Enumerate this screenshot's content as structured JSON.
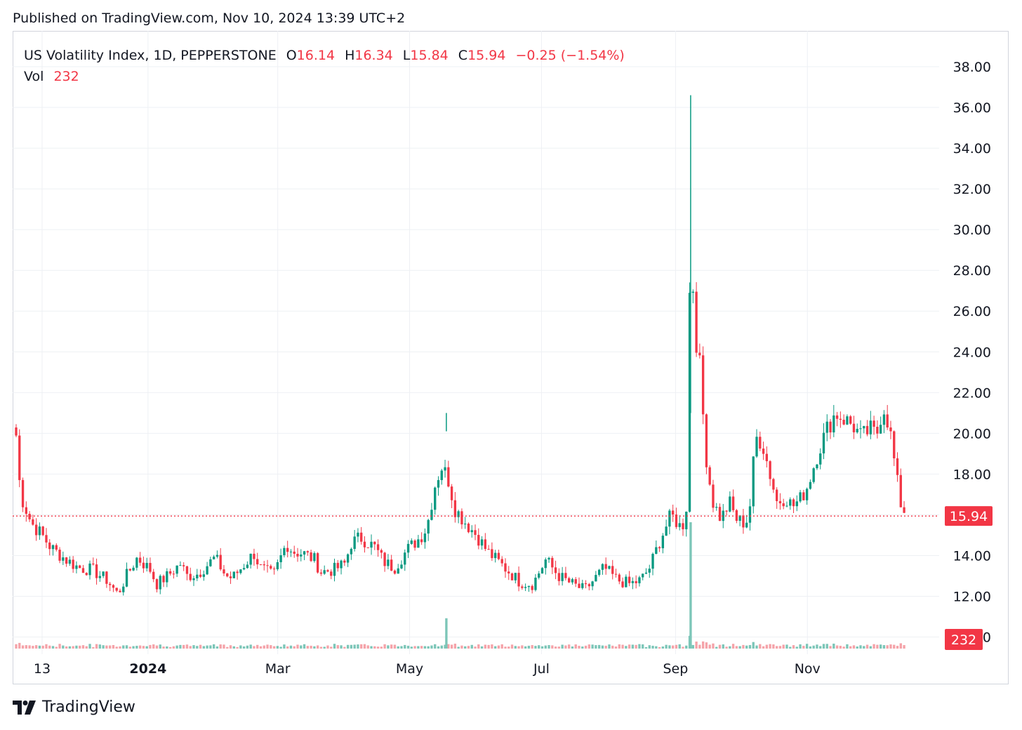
{
  "published": "Published on TradingView.com, Nov 10, 2024 13:39 UTC+2",
  "legend": {
    "symbol": "US Volatility Index, 1D, PEPPERSTONE",
    "o_label": "O",
    "o": "16.14",
    "h_label": "H",
    "h": "16.34",
    "l_label": "L",
    "l": "15.84",
    "c_label": "C",
    "c": "15.94",
    "change": "−0.25 (−1.54%)",
    "vol_label": "Vol",
    "vol": "232"
  },
  "colors": {
    "up": "#089981",
    "down": "#f23645",
    "up_vol": "#7cc6b8",
    "down_vol": "#f5a3a9",
    "grid": "#eef0f4"
  },
  "brand": "TradingView",
  "chart_data": {
    "type": "candlestick",
    "symbol": "US Volatility Index",
    "interval": "1D",
    "ylim": [
      11,
      38.8
    ],
    "yticks": [
      "38.00",
      "36.00",
      "34.00",
      "32.00",
      "30.00",
      "28.00",
      "26.00",
      "24.00",
      "22.00",
      "20.00",
      "18.00",
      "16.00",
      "14.00",
      "12.00",
      "10.00"
    ],
    "xticks": [
      {
        "label": "13",
        "date": "2023-11-13"
      },
      {
        "label": "2024",
        "date": "2024-01-01",
        "bold": true
      },
      {
        "label": "Mar",
        "date": "2024-03-01"
      },
      {
        "label": "May",
        "date": "2024-05-01"
      },
      {
        "label": "Jul",
        "date": "2024-07-01"
      },
      {
        "label": "Sep",
        "date": "2024-09-01"
      },
      {
        "label": "Nov",
        "date": "2024-11-01"
      }
    ],
    "last_price": "15.94",
    "last_volume": "232",
    "price_path": [
      [
        "2023-11-01",
        19.9
      ],
      [
        "2023-11-03",
        17.0
      ],
      [
        "2023-11-08",
        15.6
      ],
      [
        "2023-11-13",
        15.0
      ],
      [
        "2023-11-17",
        14.4
      ],
      [
        "2023-11-24",
        13.8
      ],
      [
        "2023-11-30",
        13.4
      ],
      [
        "2023-12-06",
        13.3
      ],
      [
        "2023-12-13",
        12.8
      ],
      [
        "2023-12-18",
        12.1
      ],
      [
        "2023-12-22",
        13.0
      ],
      [
        "2023-12-27",
        13.9
      ],
      [
        "2024-01-02",
        13.3
      ],
      [
        "2024-01-05",
        12.6
      ],
      [
        "2024-01-10",
        13.0
      ],
      [
        "2024-01-16",
        13.6
      ],
      [
        "2024-01-19",
        13.0
      ],
      [
        "2024-01-24",
        13.1
      ],
      [
        "2024-01-29",
        13.6
      ],
      [
        "2024-02-01",
        13.9
      ],
      [
        "2024-02-06",
        13.0
      ],
      [
        "2024-02-09",
        12.9
      ],
      [
        "2024-02-14",
        13.5
      ],
      [
        "2024-02-19",
        14.1
      ],
      [
        "2024-02-22",
        13.4
      ],
      [
        "2024-02-28",
        13.0
      ],
      [
        "2024-03-05",
        14.6
      ],
      [
        "2024-03-08",
        14.2
      ],
      [
        "2024-03-13",
        14.1
      ],
      [
        "2024-03-18",
        13.8
      ],
      [
        "2024-03-21",
        13.2
      ],
      [
        "2024-03-27",
        13.3
      ],
      [
        "2024-04-01",
        13.6
      ],
      [
        "2024-04-04",
        14.6
      ],
      [
        "2024-04-08",
        14.9
      ],
      [
        "2024-04-11",
        14.7
      ],
      [
        "2024-04-15",
        14.4
      ],
      [
        "2024-04-19",
        13.7
      ],
      [
        "2024-04-24",
        13.4
      ],
      [
        "2024-04-30",
        14.3
      ],
      [
        "2024-05-06",
        14.9
      ],
      [
        "2024-05-09",
        15.4
      ],
      [
        "2024-05-13",
        17.6
      ],
      [
        "2024-05-16",
        18.4
      ],
      [
        "2024-05-19",
        17.7
      ],
      [
        "2024-05-22",
        16.3
      ],
      [
        "2024-05-27",
        15.6
      ],
      [
        "2024-06-01",
        15.0
      ],
      [
        "2024-06-06",
        14.2
      ],
      [
        "2024-06-11",
        13.7
      ],
      [
        "2024-06-17",
        13.1
      ],
      [
        "2024-06-21",
        12.7
      ],
      [
        "2024-06-27",
        12.6
      ],
      [
        "2024-07-03",
        13.8
      ],
      [
        "2024-07-09",
        13.0
      ],
      [
        "2024-07-15",
        12.6
      ],
      [
        "2024-07-21",
        12.3
      ],
      [
        "2024-07-26",
        12.9
      ],
      [
        "2024-07-30",
        13.4
      ],
      [
        "2024-08-05",
        12.8
      ],
      [
        "2024-08-11",
        12.6
      ],
      [
        "2024-08-16",
        12.8
      ],
      [
        "2024-08-20",
        13.4
      ],
      [
        "2024-08-25",
        14.8
      ],
      [
        "2024-08-30",
        16.0
      ],
      [
        "2024-09-04",
        15.3
      ],
      [
        "2024-09-06",
        16.4
      ],
      [
        "2024-09-08",
        29.9
      ],
      [
        "2024-09-10",
        25.0
      ],
      [
        "2024-09-12",
        23.6
      ],
      [
        "2024-09-15",
        19.0
      ],
      [
        "2024-09-18",
        16.7
      ],
      [
        "2024-09-22",
        15.8
      ],
      [
        "2024-09-26",
        16.6
      ],
      [
        "2024-09-29",
        15.8
      ],
      [
        "2024-10-03",
        15.6
      ],
      [
        "2024-10-05",
        15.9
      ],
      [
        "2024-10-08",
        19.8
      ],
      [
        "2024-10-11",
        19.6
      ],
      [
        "2024-10-14",
        18.3
      ],
      [
        "2024-10-18",
        16.6
      ],
      [
        "2024-10-22",
        16.9
      ],
      [
        "2024-10-25",
        16.4
      ],
      [
        "2024-10-29",
        16.8
      ],
      [
        "2024-11-01",
        17.4
      ],
      [
        "2024-11-06",
        19.1
      ],
      [
        "2024-11-10",
        20.2
      ],
      [
        "2024-11-14",
        21.0
      ],
      [
        "2024-11-18",
        20.7
      ],
      [
        "2024-11-22",
        20.4
      ],
      [
        "2024-11-26",
        19.8
      ],
      [
        "2024-11-30",
        20.2
      ],
      [
        "2024-12-03",
        19.9
      ],
      [
        "2024-12-06",
        21.4
      ],
      [
        "2024-12-09",
        20.3
      ],
      [
        "2024-12-12",
        18.0
      ],
      [
        "2024-12-14",
        16.6
      ],
      [
        "2024-12-17",
        15.94
      ]
    ],
    "spikes": [
      {
        "date": "2024-09-08",
        "high": 36.6,
        "vol_x": 10
      },
      {
        "date": "2024-05-18",
        "high": 20.1,
        "vol_x": 2.4
      }
    ]
  }
}
